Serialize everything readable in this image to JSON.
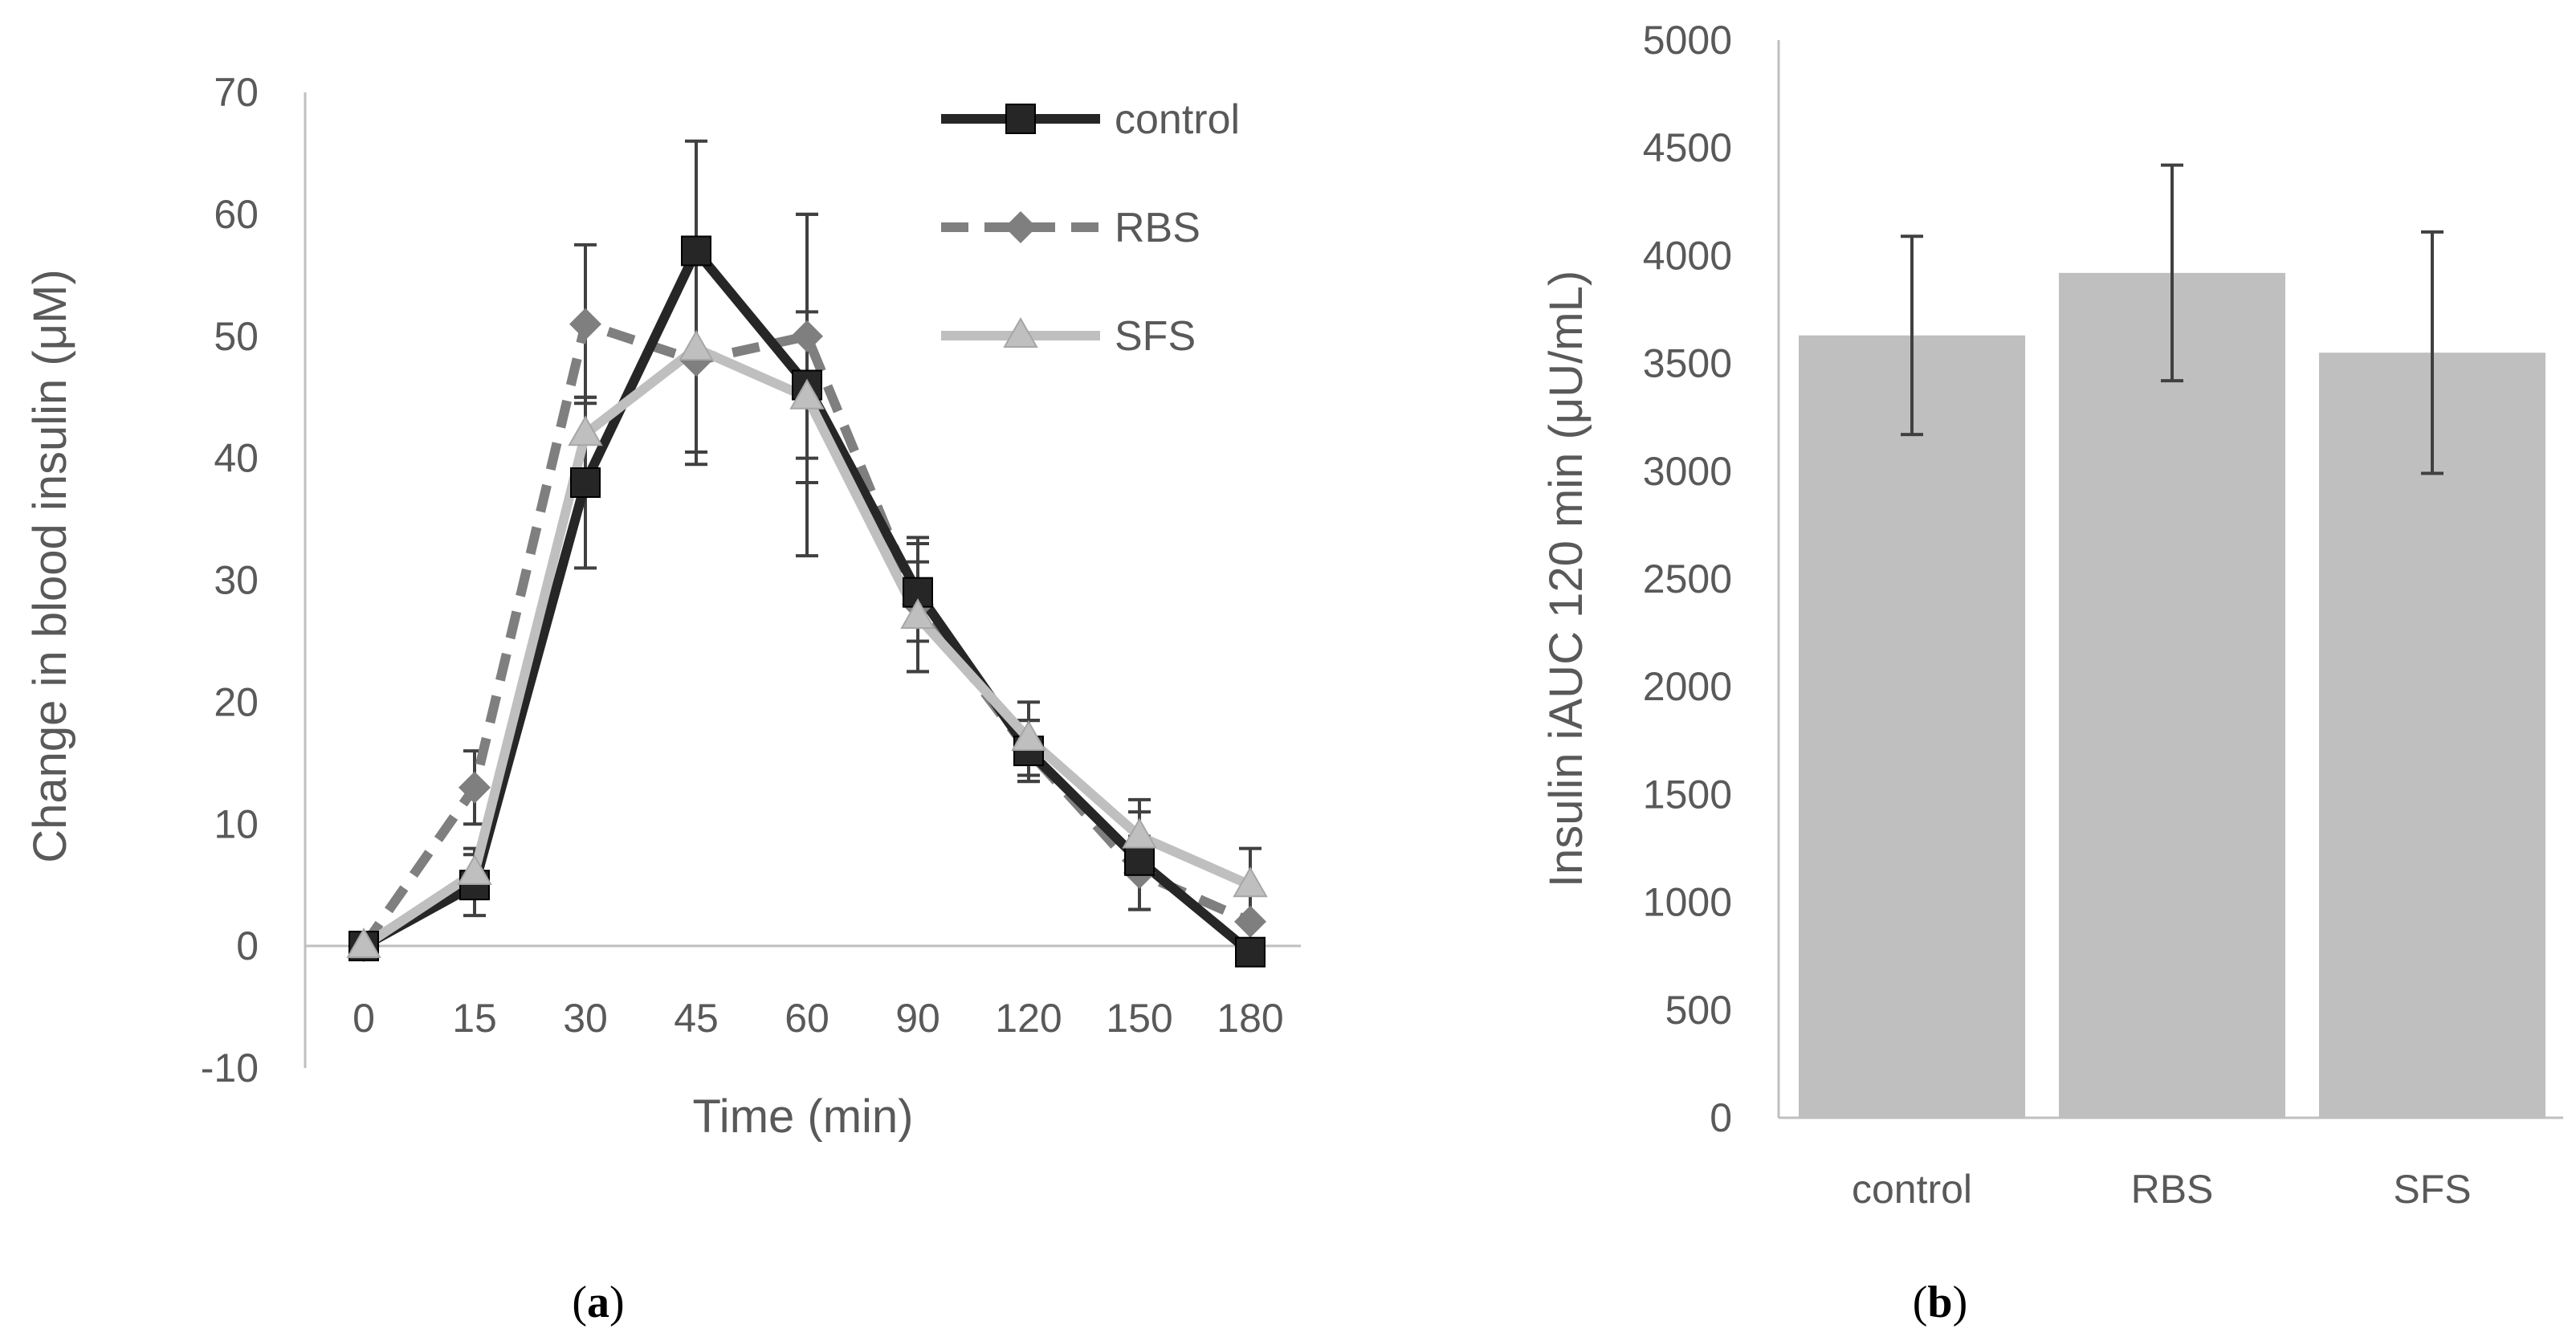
{
  "colors": {
    "axis": "#bfbfbf",
    "text": "#595959",
    "errorbar": "#404040",
    "bar_fill": "#bfbfbf",
    "control": "#262626",
    "RBS": "#7f7f7f",
    "SFS": "#bfbfbf"
  },
  "panels": {
    "a": {
      "label_open": "(",
      "label_letter": "a",
      "label_close": ")"
    },
    "b": {
      "label_open": "(",
      "label_letter": "b",
      "label_close": ")"
    }
  },
  "chart_data": [
    {
      "type": "line",
      "xlabel": "Time (min)",
      "ylabel": "Change in blood insulin (μM)",
      "categories": [
        "0",
        "15",
        "30",
        "45",
        "60",
        "90",
        "120",
        "150",
        "180"
      ],
      "ylim": [
        -10,
        70
      ],
      "yticks": [
        -10,
        0,
        10,
        20,
        30,
        40,
        50,
        60,
        70
      ],
      "grid": false,
      "legend_position": "top-right",
      "series": [
        {
          "name": "control",
          "style": "solid",
          "marker": "square",
          "color": "#262626",
          "values": [
            0,
            5,
            38,
            57,
            46,
            29,
            16,
            7,
            -0.5
          ],
          "errors": [
            0,
            2.5,
            7,
            9,
            14,
            4,
            2.5,
            4,
            0
          ]
        },
        {
          "name": "RBS",
          "style": "dashed",
          "marker": "diamond",
          "color": "#7f7f7f",
          "values": [
            0,
            13,
            51,
            48,
            50,
            28,
            16,
            6,
            2
          ],
          "errors": [
            0,
            3,
            6.5,
            8.5,
            10,
            5.5,
            2.5,
            3,
            0
          ]
        },
        {
          "name": "SFS",
          "style": "solid",
          "marker": "triangle",
          "color": "#bfbfbf",
          "values": [
            0,
            6,
            42,
            49,
            45,
            27,
            17,
            9,
            5
          ],
          "errors": [
            0,
            2,
            3,
            8.5,
            7,
            4.5,
            3,
            3,
            3
          ]
        }
      ]
    },
    {
      "type": "bar",
      "ylabel": "Insulin iAUC 120 min (μU/mL)",
      "xlabel": "",
      "categories": [
        "control",
        "RBS",
        "SFS"
      ],
      "values": [
        3630,
        3920,
        3550
      ],
      "errors": [
        460,
        500,
        560
      ],
      "ylim": [
        0,
        5000
      ],
      "yticks": [
        0,
        500,
        1000,
        1500,
        2000,
        2500,
        3000,
        3500,
        4000,
        4500,
        5000
      ],
      "grid": false
    }
  ]
}
